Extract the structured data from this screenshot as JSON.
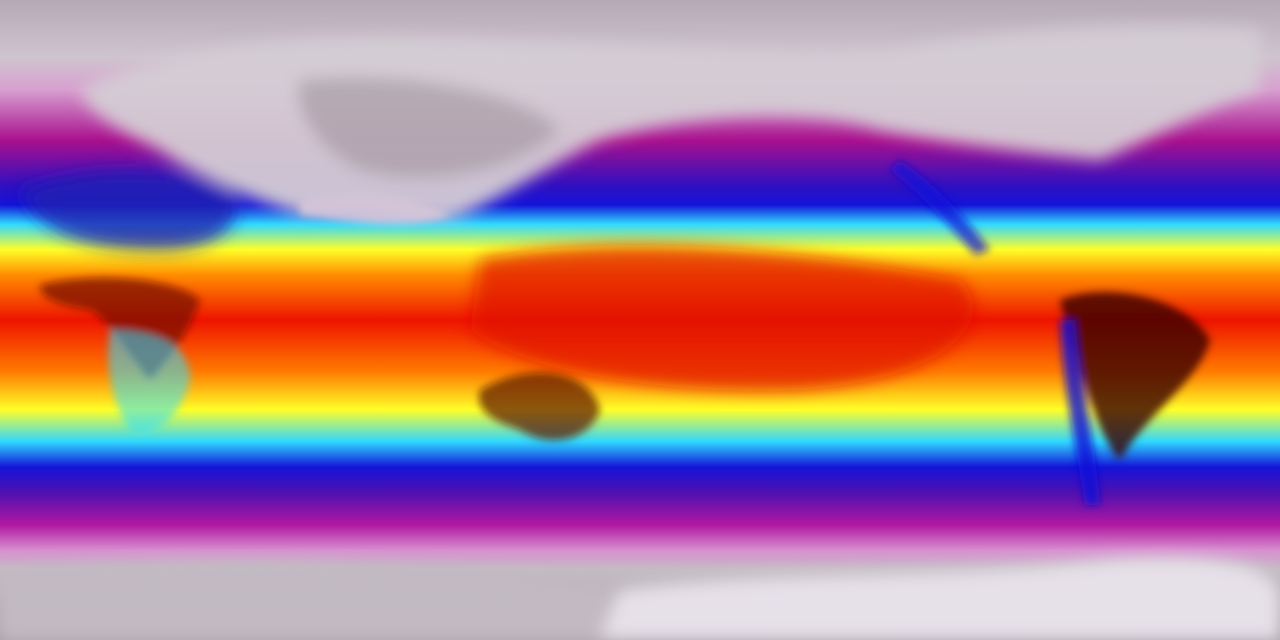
{
  "map": {
    "projection": "equirectangular",
    "colormap": {
      "polar": "#b8acb8",
      "ice": "#e8e0ea",
      "magenta": "#a8108e",
      "purple": "#5010b0",
      "blue": "#1414d8",
      "cyan": "#30d8ff",
      "yellow": "#ffff28",
      "orange": "#ff8c00",
      "red": "#ee1400",
      "dark_red": "#3a0808"
    }
  }
}
